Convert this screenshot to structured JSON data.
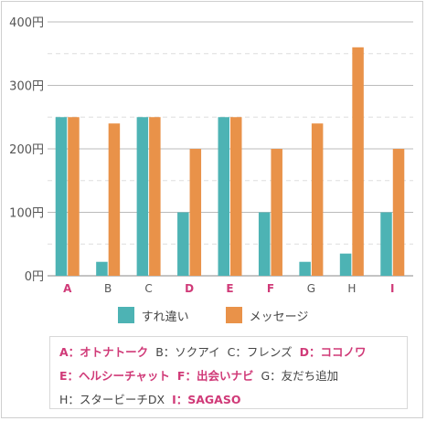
{
  "chart_data": {
    "type": "bar",
    "categories": [
      "A",
      "B",
      "C",
      "D",
      "E",
      "F",
      "G",
      "H",
      "I"
    ],
    "highlighted_categories": [
      "A",
      "D",
      "E",
      "F",
      "I"
    ],
    "series": [
      {
        "name": "すれ違い",
        "color": "#4db3b4",
        "values": [
          250,
          22,
          250,
          100,
          250,
          100,
          22,
          35,
          100
        ]
      },
      {
        "name": "メッセージ",
        "color": "#e99249",
        "values": [
          250,
          240,
          250,
          200,
          250,
          200,
          240,
          360,
          200
        ]
      }
    ],
    "ylim": [
      0,
      400
    ],
    "y_ticks": [
      "0円",
      "100円",
      "200円",
      "300円",
      "400円"
    ],
    "grid": true,
    "legend_position": "bottom"
  },
  "key": {
    "lines": [
      [
        {
          "text": "A：オトナトーク",
          "highlight": true
        },
        {
          "text": "B：ソクアイ",
          "highlight": false
        },
        {
          "text": "C：フレンズ",
          "highlight": false
        },
        {
          "text": "D：ココノワ",
          "highlight": true
        }
      ],
      [
        {
          "text": "E：ヘルシーチャット",
          "highlight": true
        },
        {
          "text": "F：出会いナビ",
          "highlight": true
        },
        {
          "text": "G：友だち追加",
          "highlight": false
        }
      ],
      [
        {
          "text": "H：スタービーチDX",
          "highlight": false
        },
        {
          "text": "I：SAGASO",
          "highlight": true
        }
      ]
    ]
  }
}
